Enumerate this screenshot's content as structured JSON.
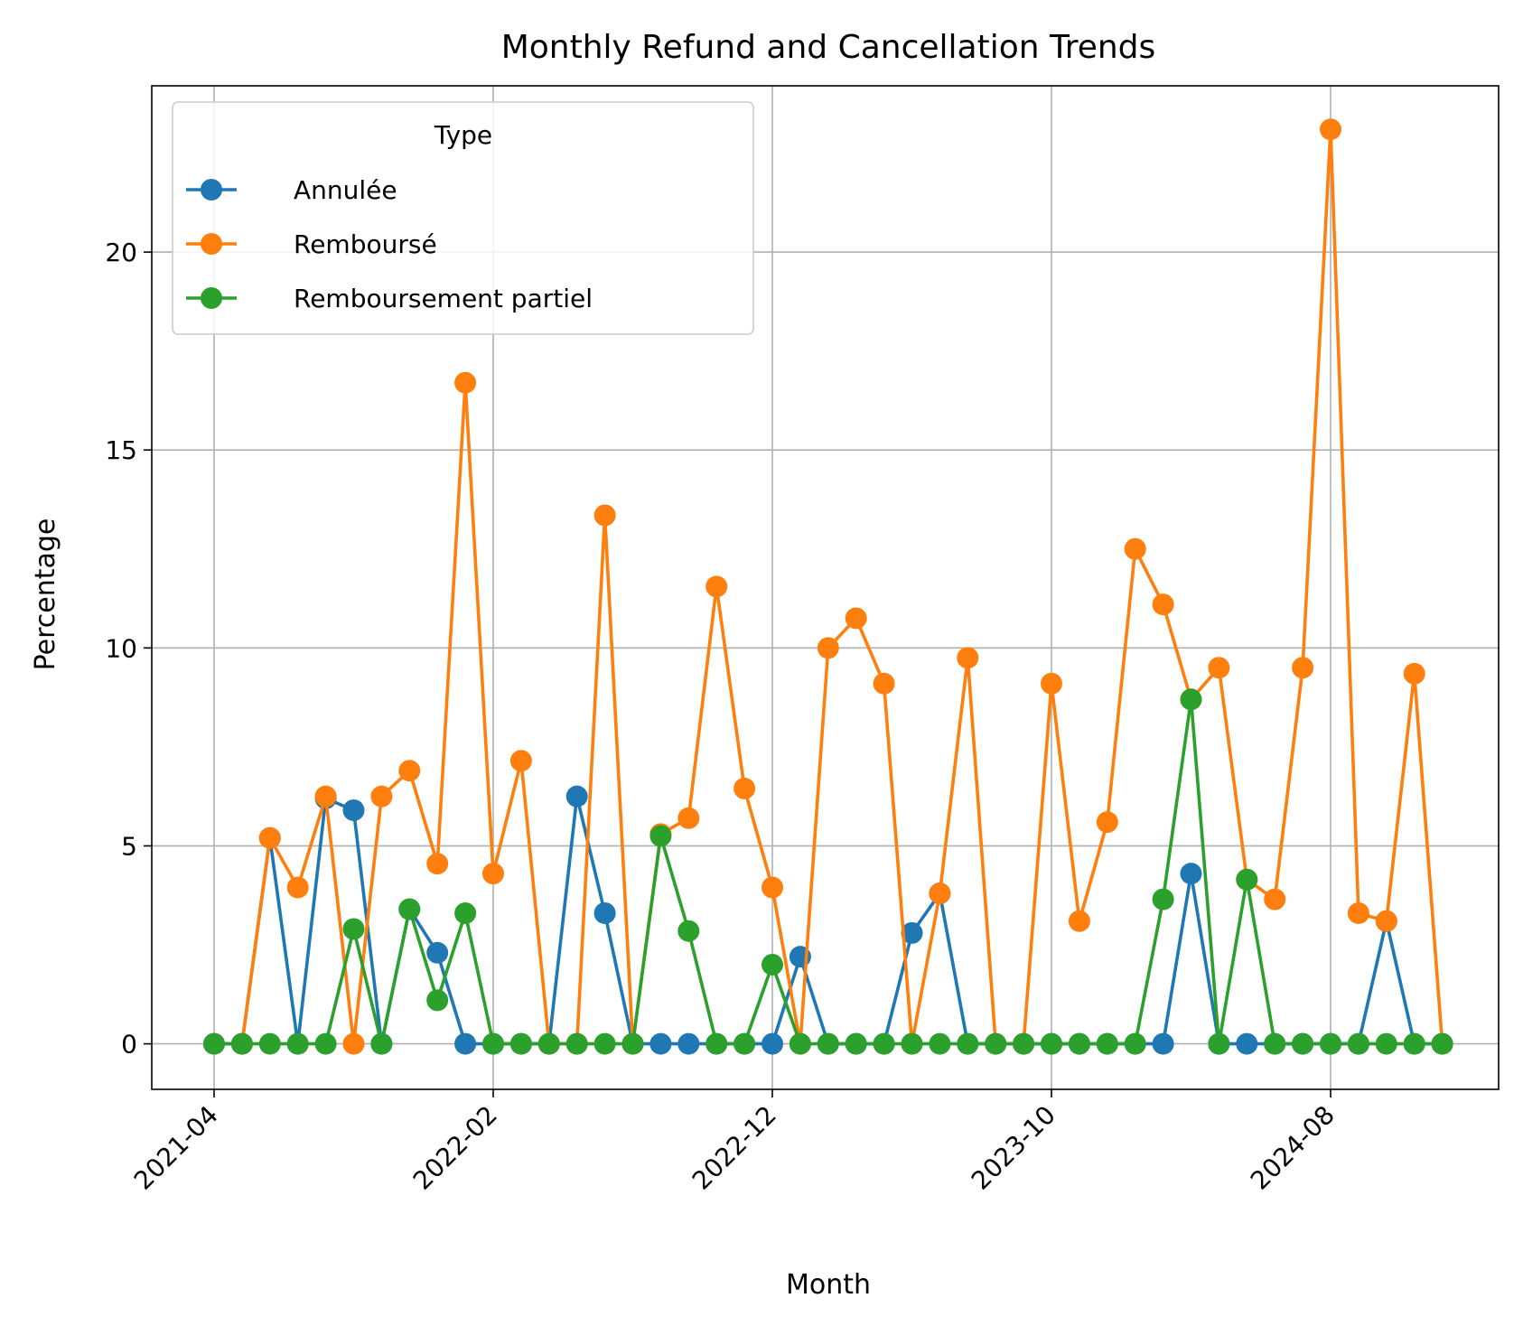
{
  "chart_data": {
    "type": "line",
    "title": "Monthly Refund and Cancellation Trends",
    "xlabel": "Month",
    "ylabel": "Percentage",
    "x": [
      "2021-04",
      "2021-05",
      "2021-06",
      "2021-07",
      "2021-08",
      "2021-09",
      "2021-10",
      "2021-11",
      "2021-12",
      "2022-01",
      "2022-02",
      "2022-03",
      "2022-04",
      "2022-05",
      "2022-06",
      "2022-07",
      "2022-08",
      "2022-09",
      "2022-10",
      "2022-11",
      "2022-12",
      "2023-01",
      "2023-02",
      "2023-03",
      "2023-04",
      "2023-05",
      "2023-06",
      "2023-07",
      "2023-08",
      "2023-09",
      "2023-10",
      "2023-11",
      "2023-12",
      "2024-01",
      "2024-02",
      "2024-03",
      "2024-04",
      "2024-05",
      "2024-06",
      "2024-07",
      "2024-08",
      "2024-09",
      "2024-10",
      "2024-11",
      "2024-12"
    ],
    "x_ticks": [
      "2021-04",
      "2022-02",
      "2022-12",
      "2023-10",
      "2024-08"
    ],
    "y_ticks": [
      0,
      5,
      10,
      15,
      20
    ],
    "ylim": [
      -1.15,
      24.2
    ],
    "grid": true,
    "legend": {
      "title": "Type",
      "placement": "top-left"
    },
    "series": [
      {
        "name": "Annulée",
        "color": "#1f77b4",
        "values": [
          0,
          0,
          5.2,
          0,
          6.2,
          5.9,
          0,
          3.4,
          2.3,
          0,
          0,
          0,
          0,
          6.25,
          3.3,
          0,
          0,
          0,
          0,
          0,
          0,
          2.2,
          0,
          0,
          0,
          2.8,
          3.8,
          0,
          0,
          0,
          0,
          0,
          0,
          0,
          0,
          4.3,
          0,
          0,
          0,
          0,
          0,
          0,
          3.1,
          0,
          0
        ]
      },
      {
        "name": "Remboursé",
        "color": "#ff7f0e",
        "values": [
          0,
          0,
          5.2,
          3.95,
          6.25,
          0,
          6.25,
          6.9,
          4.55,
          16.7,
          4.3,
          7.15,
          0,
          0,
          13.35,
          0,
          5.3,
          5.7,
          11.55,
          6.45,
          3.95,
          0,
          10.0,
          10.75,
          9.1,
          0,
          3.8,
          9.75,
          0,
          0,
          9.1,
          3.1,
          5.6,
          12.5,
          11.1,
          8.7,
          9.5,
          4.15,
          3.65,
          9.5,
          23.1,
          3.3,
          3.1,
          9.35,
          0
        ]
      },
      {
        "name": "Remboursement partiel",
        "color": "#2ca02c",
        "values": [
          0,
          0,
          0,
          0,
          0,
          2.9,
          0,
          3.4,
          1.1,
          3.3,
          0,
          0,
          0,
          0,
          0,
          0,
          5.25,
          2.85,
          0,
          0,
          2.0,
          0,
          0,
          0,
          0,
          0,
          0,
          0,
          0,
          0,
          0,
          0,
          0,
          0,
          3.65,
          8.7,
          0,
          4.15,
          0,
          0,
          0,
          0,
          0,
          0,
          0
        ]
      }
    ]
  }
}
